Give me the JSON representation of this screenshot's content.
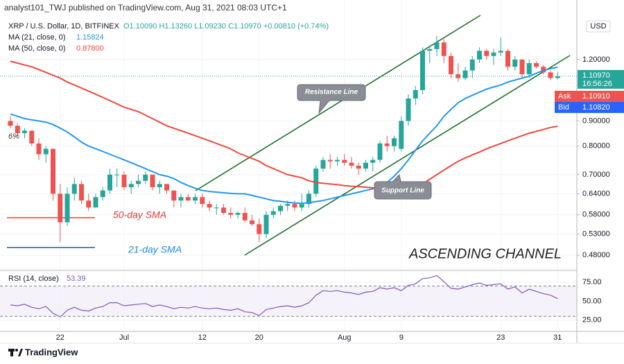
{
  "chart_data": {
    "type": "candlestick",
    "header": "analyst101_TWJ published on TradingView.com, Aug 31, 2021 08:03 UTC+1",
    "title": "XRP / U.S. Dollar, 1D, BITFINEX",
    "ohlc_legend": "O1.10090 H1.13260 L1.09230 C1.10970 +0.00810 (+0.74%)",
    "categories": [
      null,
      null,
      null,
      null,
      null,
      null,
      null,
      "22",
      null,
      null,
      null,
      null,
      null,
      null,
      null,
      null,
      "Jul",
      null,
      null,
      null,
      null,
      null,
      null,
      null,
      null,
      null,
      null,
      "12",
      null,
      null,
      null,
      null,
      null,
      null,
      null,
      "20",
      null,
      null,
      null,
      null,
      null,
      null,
      null,
      null,
      null,
      null,
      null,
      "Aug",
      null,
      null,
      null,
      null,
      null,
      null,
      null,
      "9",
      null,
      null,
      null,
      null,
      null,
      null,
      null,
      null,
      null,
      null,
      null,
      null,
      null,
      "23",
      null,
      null,
      null,
      null,
      null,
      null,
      null,
      "31"
    ],
    "ohlc": {
      "up_color": "#26a69a",
      "down_color": "#ef5350",
      "open": [
        0.9,
        0.88,
        0.85,
        0.86,
        0.81,
        0.77,
        0.79,
        0.64,
        0.56,
        0.64,
        0.67,
        0.62,
        0.6,
        0.63,
        0.65,
        0.7,
        0.7,
        0.66,
        0.67,
        0.68,
        0.7,
        0.66,
        0.67,
        0.65,
        0.62,
        0.63,
        0.62,
        0.63,
        0.61,
        0.6,
        0.6,
        0.585,
        0.58,
        0.585,
        0.565,
        0.555,
        0.53,
        0.58,
        0.59,
        0.605,
        0.61,
        0.6,
        0.61,
        0.64,
        0.72,
        0.75,
        0.745,
        0.75,
        0.74,
        0.73,
        0.72,
        0.74,
        0.75,
        0.81,
        0.8,
        0.79,
        0.9,
        1.0,
        1.04,
        1.25,
        1.26,
        1.3,
        1.22,
        1.12,
        1.1,
        1.14,
        1.2,
        1.25,
        1.22,
        1.24,
        1.25,
        1.16,
        1.2,
        1.12,
        1.18,
        1.16,
        1.13,
        1.1009
      ],
      "high": [
        0.92,
        0.89,
        0.87,
        0.86,
        0.83,
        0.8,
        0.79,
        0.67,
        0.66,
        0.69,
        0.68,
        0.64,
        0.64,
        0.66,
        0.72,
        0.72,
        0.71,
        0.68,
        0.7,
        0.71,
        0.7,
        0.68,
        0.67,
        0.65,
        0.64,
        0.64,
        0.64,
        0.64,
        0.62,
        0.61,
        0.61,
        0.6,
        0.59,
        0.6,
        0.58,
        0.57,
        0.59,
        0.6,
        0.61,
        0.62,
        0.62,
        0.64,
        0.65,
        0.73,
        0.76,
        0.77,
        0.76,
        0.77,
        0.76,
        0.74,
        0.75,
        0.76,
        0.82,
        0.84,
        0.84,
        0.92,
        1.02,
        1.06,
        1.27,
        1.28,
        1.34,
        1.32,
        1.24,
        1.18,
        1.16,
        1.22,
        1.27,
        1.26,
        1.26,
        1.33,
        1.26,
        1.22,
        1.2,
        1.2,
        1.19,
        1.17,
        1.14,
        1.1326
      ],
      "low": [
        0.87,
        0.84,
        0.83,
        0.8,
        0.75,
        0.74,
        0.62,
        0.51,
        0.55,
        0.62,
        0.61,
        0.59,
        0.6,
        0.62,
        0.64,
        0.66,
        0.65,
        0.64,
        0.66,
        0.67,
        0.65,
        0.64,
        0.64,
        0.6,
        0.6,
        0.62,
        0.61,
        0.6,
        0.59,
        0.58,
        0.58,
        0.57,
        0.57,
        0.56,
        0.55,
        0.51,
        0.52,
        0.57,
        0.58,
        0.59,
        0.59,
        0.59,
        0.6,
        0.63,
        0.71,
        0.72,
        0.73,
        0.73,
        0.72,
        0.7,
        0.71,
        0.71,
        0.74,
        0.78,
        0.78,
        0.78,
        0.88,
        0.97,
        1.02,
        1.18,
        1.22,
        1.18,
        1.1,
        1.08,
        1.09,
        1.1,
        1.18,
        1.2,
        1.17,
        1.22,
        1.14,
        1.14,
        1.1,
        1.1,
        1.15,
        1.12,
        1.09,
        1.0923
      ],
      "close": [
        0.88,
        0.85,
        0.86,
        0.81,
        0.77,
        0.79,
        0.64,
        0.56,
        0.64,
        0.67,
        0.62,
        0.6,
        0.63,
        0.65,
        0.7,
        0.7,
        0.66,
        0.67,
        0.68,
        0.7,
        0.66,
        0.67,
        0.65,
        0.62,
        0.63,
        0.62,
        0.63,
        0.61,
        0.6,
        0.6,
        0.585,
        0.58,
        0.585,
        0.565,
        0.555,
        0.53,
        0.58,
        0.59,
        0.605,
        0.61,
        0.6,
        0.61,
        0.64,
        0.72,
        0.75,
        0.745,
        0.75,
        0.74,
        0.73,
        0.72,
        0.74,
        0.75,
        0.81,
        0.8,
        0.83,
        0.9,
        1.0,
        1.04,
        1.25,
        1.26,
        1.3,
        1.22,
        1.12,
        1.1,
        1.14,
        1.2,
        1.25,
        1.22,
        1.24,
        1.25,
        1.16,
        1.2,
        1.12,
        1.18,
        1.16,
        1.13,
        1.1,
        1.1097
      ]
    },
    "series": [
      {
        "name": "MA (21, close, 0)",
        "last_label": "1.15824",
        "color": "#2196f3",
        "values": [
          0.93,
          0.92,
          0.91,
          0.905,
          0.9,
          0.895,
          0.885,
          0.87,
          0.855,
          0.835,
          0.815,
          0.8,
          0.79,
          0.78,
          0.77,
          0.76,
          0.75,
          0.74,
          0.73,
          0.72,
          0.71,
          0.7,
          0.695,
          0.687,
          0.675,
          0.665,
          0.657,
          0.65,
          0.647,
          0.645,
          0.643,
          0.641,
          0.64,
          0.64,
          0.635,
          0.63,
          0.625,
          0.62,
          0.618,
          0.615,
          0.613,
          0.612,
          0.614,
          0.617,
          0.62,
          0.625,
          0.63,
          0.635,
          0.64,
          0.645,
          0.65,
          0.655,
          0.66,
          0.675,
          0.695,
          0.72,
          0.75,
          0.785,
          0.82,
          0.85,
          0.88,
          0.92,
          0.95,
          0.98,
          1.0,
          1.015,
          1.03,
          1.045,
          1.055,
          1.065,
          1.08,
          1.09,
          1.1,
          1.11,
          1.125,
          1.14,
          1.15,
          1.158
        ]
      },
      {
        "name": "MA (50, close, 0)",
        "last_label": "0.87800",
        "color": "#f0473b",
        "values": [
          1.19,
          1.18,
          1.17,
          1.16,
          1.145,
          1.13,
          1.115,
          1.1,
          1.08,
          1.065,
          1.05,
          1.035,
          1.02,
          1.005,
          0.99,
          0.975,
          0.96,
          0.95,
          0.94,
          0.925,
          0.91,
          0.895,
          0.88,
          0.87,
          0.86,
          0.85,
          0.84,
          0.83,
          0.82,
          0.81,
          0.8,
          0.79,
          0.775,
          0.765,
          0.755,
          0.745,
          0.73,
          0.72,
          0.71,
          0.7,
          0.695,
          0.69,
          0.68,
          0.675,
          0.672,
          0.67,
          0.668,
          0.665,
          0.663,
          0.662,
          0.66,
          0.658,
          0.657,
          0.656,
          0.655,
          0.655,
          0.657,
          0.66,
          0.67,
          0.685,
          0.7,
          0.715,
          0.73,
          0.745,
          0.757,
          0.768,
          0.778,
          0.79,
          0.8,
          0.81,
          0.82,
          0.83,
          0.84,
          0.85,
          0.857,
          0.865,
          0.873,
          0.878
        ]
      }
    ],
    "log_scale": true,
    "grid": true,
    "ylim": [
      0.447,
      1.448
    ],
    "yticks": [
      {
        "value": 0.48,
        "label": "0.48000"
      },
      {
        "value": 0.53,
        "label": "0.53000"
      },
      {
        "value": 0.58,
        "label": "0.58000"
      },
      {
        "value": 0.64,
        "label": "0.64000"
      },
      {
        "value": 0.7,
        "label": "0.70000"
      },
      {
        "value": 0.8,
        "label": "0.80000"
      },
      {
        "value": 0.9,
        "label": "0.90000"
      },
      {
        "value": 1.2,
        "label": "1.20000"
      }
    ],
    "axis_unit": "USD",
    "price_tag": {
      "price": "1.10970",
      "countdown": "16:56:26",
      "ask_label": "Ask",
      "ask": "1.10910",
      "bid_label": "Bid",
      "bid": "1.10820"
    },
    "rsi": {
      "name": "RSI (14, close)",
      "last_label": "53.39",
      "color": "#7e57c2",
      "ylim": [
        10,
        89
      ],
      "band": [
        30,
        70
      ],
      "yticks": [
        {
          "value": 25,
          "label": "25.00"
        },
        {
          "value": 50,
          "label": "50.00"
        },
        {
          "value": 75,
          "label": "75.00"
        }
      ],
      "values": [
        45,
        44,
        46,
        42,
        40,
        43,
        34,
        29,
        38,
        42,
        38,
        37,
        41,
        43,
        48,
        48,
        44,
        45,
        46,
        47,
        43,
        45,
        43,
        40,
        42,
        41,
        43,
        41,
        40,
        41,
        39,
        38,
        40,
        36,
        35,
        31,
        39,
        41,
        43,
        44,
        42,
        44,
        48,
        58,
        64,
        63,
        64,
        62,
        61,
        59,
        62,
        63,
        68,
        66,
        68,
        64,
        71,
        73,
        80,
        81,
        84,
        76,
        67,
        66,
        69,
        72,
        74,
        71,
        72,
        73,
        66,
        69,
        61,
        66,
        63,
        60,
        58,
        53.39
      ]
    },
    "annotations": {
      "resistance": "Resistance Line",
      "support": "Support Line",
      "sma50": "50-day SMA",
      "sma21": "21-day SMA",
      "channel": "ASCENDING CHANNEL",
      "edge": "6%"
    },
    "footer": "TradingView"
  }
}
